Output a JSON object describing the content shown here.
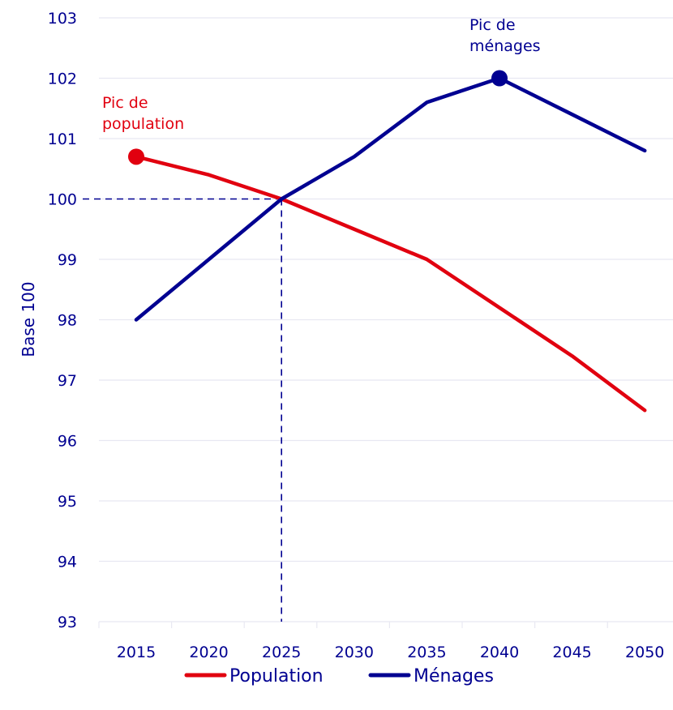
{
  "chart_data": {
    "type": "line",
    "title": "",
    "xlabel": "",
    "ylabel": "Base 100",
    "ylim": [
      93,
      103
    ],
    "yticks": [
      93,
      94,
      95,
      96,
      97,
      98,
      99,
      100,
      101,
      102,
      103
    ],
    "categories": [
      "2015",
      "2020",
      "2025",
      "2030",
      "2035",
      "2040",
      "2045",
      "2050"
    ],
    "grid": "horizontal",
    "legend_position": "bottom",
    "reference": {
      "category": "2025",
      "value": 100
    },
    "series": [
      {
        "name": "Population",
        "color": "#e1000f",
        "values": [
          100.7,
          100.4,
          100.0,
          99.5,
          99.0,
          98.2,
          97.4,
          96.5
        ]
      },
      {
        "name": "Ménages",
        "color": "#000091",
        "values": [
          98.0,
          99.0,
          100.0,
          100.7,
          101.6,
          102.0,
          101.4,
          100.8
        ]
      }
    ],
    "annotations": [
      {
        "series": "Population",
        "category": "2015",
        "value": 100.7,
        "lines": [
          "Pic de",
          "population"
        ],
        "color": "#e1000f"
      },
      {
        "series": "Ménages",
        "category": "2040",
        "value": 102.0,
        "lines": [
          "Pic de",
          "ménages"
        ],
        "color": "#000091"
      }
    ]
  }
}
